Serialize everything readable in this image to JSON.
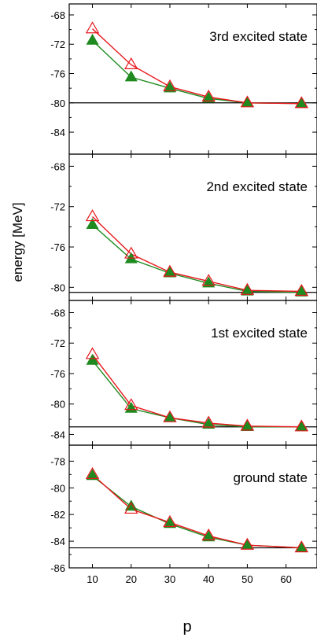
{
  "figure": {
    "ylabel": "energy [MeV]",
    "xlabel": "p",
    "x_ticks": [
      10,
      20,
      30,
      40,
      50,
      60
    ]
  },
  "colors": {
    "open_series": "#e8161b",
    "filled_series": "#1f8a1f",
    "reference_line": "#000000",
    "axes": "#000000"
  },
  "chart_data": [
    {
      "type": "line",
      "title": "3rd excited state",
      "x": [
        10,
        20,
        30,
        40,
        50,
        64
      ],
      "xlim": [
        4,
        68
      ],
      "ylim": [
        -87,
        -66.5
      ],
      "y_ticks": [
        -68,
        -72,
        -76,
        -80,
        -84
      ],
      "reference_line": -80.0,
      "series": [
        {
          "marker": "open-triangle",
          "color": "#e8161b",
          "values": [
            -69.9,
            -74.8,
            -77.8,
            -79.2,
            -80.0,
            -80.1
          ]
        },
        {
          "marker": "filled-triangle",
          "color": "#1f8a1f",
          "values": [
            -71.5,
            -76.5,
            -78.0,
            -79.4,
            -80.0,
            -80.1
          ]
        }
      ]
    },
    {
      "type": "line",
      "title": "2nd excited state",
      "x": [
        10,
        20,
        30,
        40,
        50,
        64
      ],
      "xlim": [
        4,
        68
      ],
      "ylim": [
        -81.3,
        -66.8
      ],
      "y_ticks": [
        -68,
        -72,
        -76,
        -80
      ],
      "reference_line": -80.5,
      "series": [
        {
          "marker": "open-triangle",
          "color": "#e8161b",
          "values": [
            -73.0,
            -76.7,
            -78.5,
            -79.4,
            -80.3,
            -80.4
          ]
        },
        {
          "marker": "filled-triangle",
          "color": "#1f8a1f",
          "values": [
            -73.8,
            -77.2,
            -78.6,
            -79.6,
            -80.4,
            -80.5
          ]
        }
      ]
    },
    {
      "type": "line",
      "title": "1st excited state",
      "x": [
        10,
        20,
        30,
        40,
        50,
        64
      ],
      "xlim": [
        4,
        68
      ],
      "ylim": [
        -85.4,
        -66.4
      ],
      "y_ticks": [
        -68,
        -72,
        -76,
        -80,
        -84
      ],
      "reference_line": -83.0,
      "series": [
        {
          "marker": "open-triangle",
          "color": "#e8161b",
          "values": [
            -73.5,
            -80.2,
            -81.8,
            -82.5,
            -82.9,
            -83.0
          ]
        },
        {
          "marker": "filled-triangle",
          "color": "#1f8a1f",
          "values": [
            -74.3,
            -80.6,
            -81.8,
            -82.7,
            -83.0,
            -83.0
          ]
        }
      ]
    },
    {
      "type": "line",
      "title": "ground state",
      "x": [
        10,
        20,
        30,
        40,
        50,
        64
      ],
      "xlim": [
        4,
        68
      ],
      "ylim": [
        -86,
        -76.8
      ],
      "y_ticks": [
        -78,
        -80,
        -82,
        -84,
        -86
      ],
      "reference_line": -84.5,
      "series": [
        {
          "marker": "open-triangle",
          "color": "#e8161b",
          "values": [
            -79.0,
            -81.6,
            -82.6,
            -83.6,
            -84.3,
            -84.5
          ]
        },
        {
          "marker": "filled-triangle",
          "color": "#1f8a1f",
          "values": [
            -79.1,
            -81.4,
            -82.7,
            -83.7,
            -84.3,
            -84.5
          ]
        }
      ]
    }
  ]
}
